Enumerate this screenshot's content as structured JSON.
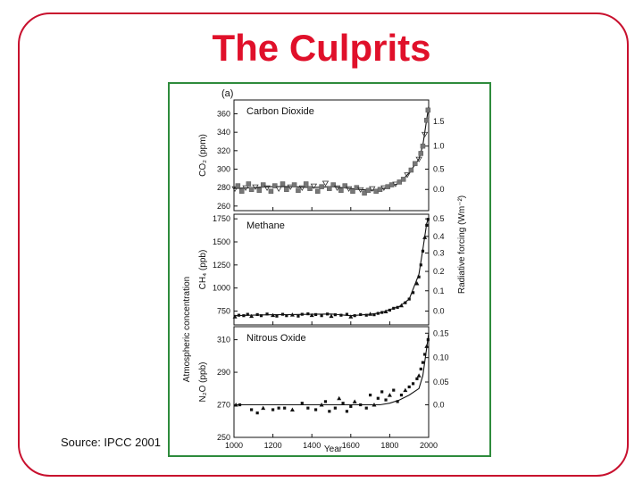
{
  "slide": {
    "title": "The Culprits",
    "source": "Source: IPCC 2001"
  },
  "colors": {
    "frame": "#c8102e",
    "title": "#e0102a",
    "figure_border": "#2e8b3c"
  },
  "chart_data": {
    "type": "line",
    "figure_label": "(a)",
    "left_axis_title": "Atmospheric concentration",
    "right_axis_title": "Radiative forcing  (Wm⁻²)",
    "xlabel": "Year",
    "x_ticks": [
      1000,
      1200,
      1400,
      1600,
      1800,
      2000
    ],
    "xlim": [
      1000,
      2000
    ],
    "panels": [
      {
        "id": "co2",
        "label": "Carbon Dioxide",
        "ylabel": "CO₂ (ppm)",
        "ylim": [
          255,
          375
        ],
        "y_ticks": [
          260,
          280,
          300,
          320,
          340,
          360
        ],
        "right_ticks": [
          "0.0",
          "0.5",
          "1.0",
          "1.5"
        ],
        "right_tick_values": [
          278,
          300,
          325,
          352
        ],
        "curve": [
          [
            1000,
            279
          ],
          [
            1100,
            280
          ],
          [
            1200,
            281
          ],
          [
            1300,
            281
          ],
          [
            1400,
            280
          ],
          [
            1500,
            281
          ],
          [
            1600,
            279
          ],
          [
            1700,
            277
          ],
          [
            1750,
            278
          ],
          [
            1800,
            281
          ],
          [
            1850,
            285
          ],
          [
            1900,
            296
          ],
          [
            1950,
            311
          ],
          [
            1970,
            326
          ],
          [
            1990,
            354
          ],
          [
            2000,
            368
          ]
        ],
        "points": [
          [
            1005,
            279
          ],
          [
            1020,
            282
          ],
          [
            1040,
            276
          ],
          [
            1060,
            280
          ],
          [
            1075,
            284
          ],
          [
            1090,
            278
          ],
          [
            1110,
            281
          ],
          [
            1130,
            277
          ],
          [
            1150,
            283
          ],
          [
            1170,
            280
          ],
          [
            1190,
            276
          ],
          [
            1210,
            282
          ],
          [
            1230,
            279
          ],
          [
            1250,
            284
          ],
          [
            1270,
            278
          ],
          [
            1290,
            281
          ],
          [
            1310,
            283
          ],
          [
            1330,
            277
          ],
          [
            1350,
            280
          ],
          [
            1370,
            284
          ],
          [
            1390,
            279
          ],
          [
            1410,
            282
          ],
          [
            1430,
            276
          ],
          [
            1450,
            281
          ],
          [
            1470,
            285
          ],
          [
            1490,
            279
          ],
          [
            1510,
            283
          ],
          [
            1530,
            280
          ],
          [
            1550,
            277
          ],
          [
            1570,
            282
          ],
          [
            1590,
            279
          ],
          [
            1610,
            276
          ],
          [
            1630,
            280
          ],
          [
            1650,
            278
          ],
          [
            1670,
            274
          ],
          [
            1690,
            277
          ],
          [
            1710,
            279
          ],
          [
            1730,
            276
          ],
          [
            1750,
            278
          ],
          [
            1770,
            280
          ],
          [
            1790,
            281
          ],
          [
            1810,
            283
          ],
          [
            1830,
            284
          ],
          [
            1850,
            286
          ],
          [
            1870,
            289
          ],
          [
            1890,
            294
          ],
          [
            1910,
            299
          ],
          [
            1930,
            306
          ],
          [
            1950,
            311
          ],
          [
            1960,
            317
          ],
          [
            1970,
            325
          ],
          [
            1980,
            338
          ],
          [
            1990,
            353
          ],
          [
            1997,
            364
          ]
        ]
      },
      {
        "id": "ch4",
        "label": "Methane",
        "ylabel": "CH₄ (ppb)",
        "ylim": [
          600,
          1800
        ],
        "y_ticks": [
          750,
          1000,
          1250,
          1500,
          1750
        ],
        "right_ticks": [
          "0.0",
          "0.1",
          "0.2",
          "0.3",
          "0.4",
          "0.5"
        ],
        "right_tick_values": [
          750,
          970,
          1180,
          1380,
          1560,
          1750
        ],
        "curve": [
          [
            1000,
            700
          ],
          [
            1100,
            705
          ],
          [
            1200,
            710
          ],
          [
            1300,
            712
          ],
          [
            1400,
            715
          ],
          [
            1500,
            718
          ],
          [
            1600,
            700
          ],
          [
            1700,
            715
          ],
          [
            1750,
            730
          ],
          [
            1800,
            765
          ],
          [
            1850,
            800
          ],
          [
            1900,
            880
          ],
          [
            1950,
            1150
          ],
          [
            1970,
            1420
          ],
          [
            1990,
            1700
          ],
          [
            2000,
            1760
          ]
        ],
        "points": [
          [
            1005,
            690
          ],
          [
            1025,
            705
          ],
          [
            1050,
            700
          ],
          [
            1070,
            715
          ],
          [
            1090,
            695
          ],
          [
            1120,
            712
          ],
          [
            1140,
            700
          ],
          [
            1170,
            718
          ],
          [
            1200,
            705
          ],
          [
            1220,
            695
          ],
          [
            1250,
            715
          ],
          [
            1270,
            700
          ],
          [
            1300,
            710
          ],
          [
            1330,
            695
          ],
          [
            1350,
            715
          ],
          [
            1380,
            720
          ],
          [
            1400,
            705
          ],
          [
            1420,
            712
          ],
          [
            1450,
            700
          ],
          [
            1480,
            718
          ],
          [
            1500,
            695
          ],
          [
            1520,
            710
          ],
          [
            1550,
            705
          ],
          [
            1580,
            715
          ],
          [
            1600,
            690
          ],
          [
            1620,
            700
          ],
          [
            1650,
            712
          ],
          [
            1680,
            705
          ],
          [
            1700,
            718
          ],
          [
            1720,
            710
          ],
          [
            1740,
            725
          ],
          [
            1760,
            735
          ],
          [
            1780,
            745
          ],
          [
            1800,
            760
          ],
          [
            1820,
            780
          ],
          [
            1840,
            790
          ],
          [
            1860,
            810
          ],
          [
            1880,
            840
          ],
          [
            1900,
            880
          ],
          [
            1920,
            950
          ],
          [
            1940,
            1050
          ],
          [
            1950,
            1120
          ],
          [
            1960,
            1250
          ],
          [
            1970,
            1400
          ],
          [
            1980,
            1550
          ],
          [
            1990,
            1680
          ],
          [
            1997,
            1745
          ]
        ]
      },
      {
        "id": "n2o",
        "label": "Nitrous Oxide",
        "ylabel": "N₂O (ppb)",
        "ylim": [
          250,
          318
        ],
        "y_ticks": [
          250,
          270,
          290,
          310
        ],
        "right_ticks": [
          "0.0",
          "0.05",
          "0.10",
          "0.15"
        ],
        "right_tick_values": [
          270,
          284,
          299,
          314
        ],
        "curve": [
          [
            1000,
            270
          ],
          [
            1100,
            270
          ],
          [
            1200,
            270
          ],
          [
            1300,
            270
          ],
          [
            1400,
            270
          ],
          [
            1500,
            270
          ],
          [
            1600,
            270
          ],
          [
            1700,
            270
          ],
          [
            1750,
            270
          ],
          [
            1800,
            271
          ],
          [
            1850,
            273
          ],
          [
            1900,
            276
          ],
          [
            1950,
            280
          ],
          [
            1970,
            288
          ],
          [
            1990,
            305
          ],
          [
            2000,
            314
          ]
        ],
        "points": [
          [
            1010,
            270
          ],
          [
            1030,
            270
          ],
          [
            1090,
            267
          ],
          [
            1120,
            265
          ],
          [
            1150,
            268
          ],
          [
            1200,
            267
          ],
          [
            1230,
            268
          ],
          [
            1260,
            268
          ],
          [
            1300,
            267
          ],
          [
            1350,
            271
          ],
          [
            1380,
            268
          ],
          [
            1420,
            267
          ],
          [
            1450,
            270
          ],
          [
            1470,
            272
          ],
          [
            1490,
            266
          ],
          [
            1520,
            268
          ],
          [
            1540,
            274
          ],
          [
            1560,
            271
          ],
          [
            1580,
            266
          ],
          [
            1600,
            269
          ],
          [
            1620,
            272
          ],
          [
            1650,
            270
          ],
          [
            1680,
            268
          ],
          [
            1700,
            276
          ],
          [
            1720,
            270
          ],
          [
            1740,
            274
          ],
          [
            1760,
            278
          ],
          [
            1780,
            273
          ],
          [
            1800,
            276
          ],
          [
            1820,
            279
          ],
          [
            1840,
            272
          ],
          [
            1860,
            276
          ],
          [
            1880,
            279
          ],
          [
            1900,
            281
          ],
          [
            1920,
            283
          ],
          [
            1940,
            286
          ],
          [
            1950,
            288
          ],
          [
            1960,
            292
          ],
          [
            1970,
            296
          ],
          [
            1980,
            301
          ],
          [
            1990,
            306
          ],
          [
            1997,
            310
          ]
        ]
      }
    ]
  }
}
